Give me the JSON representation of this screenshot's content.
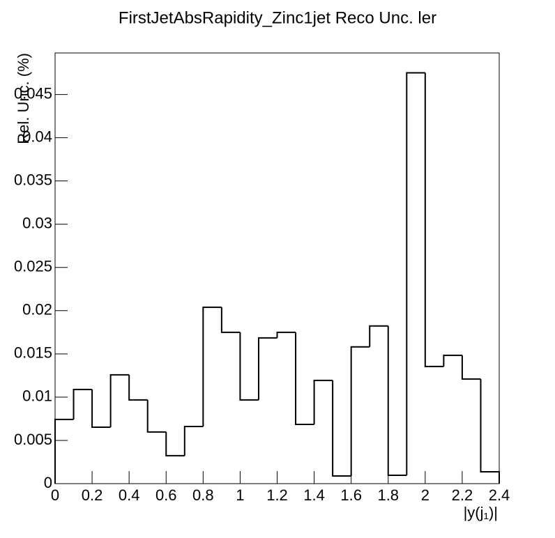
{
  "chart_data": {
    "type": "histogram",
    "title": "FirstJetAbsRapidity_Zinc1jet Reco Unc. ler",
    "x_label": "|y(j₁)|",
    "y_label": "Rel. Unc. (%)",
    "bins": [
      0,
      0.1,
      0.2,
      0.3,
      0.4,
      0.5,
      0.6,
      0.7,
      0.8,
      0.9,
      1,
      1.1,
      1.2,
      1.3,
      1.4,
      1.5,
      1.6,
      1.7,
      1.8,
      1.9,
      2,
      2.1,
      2.2,
      2.3,
      2.4
    ],
    "values": [
      0.00742,
      0.01089,
      0.00653,
      0.01258,
      0.00968,
      0.00597,
      0.00323,
      0.00661,
      0.0204,
      0.0175,
      0.00968,
      0.01685,
      0.0175,
      0.00685,
      0.01194,
      0.00089,
      0.01581,
      0.01823,
      0.00097,
      0.0475,
      0.01355,
      0.01484,
      0.0121,
      0.00137
    ],
    "color": "#000000",
    "xlim": [
      0,
      2.4
    ],
    "ylim": [
      0,
      0.0498
    ],
    "xticks": [
      0,
      0.2,
      0.4,
      0.6,
      0.8,
      1,
      1.2,
      1.4,
      1.6,
      1.8,
      2,
      2.2,
      2.4
    ],
    "yticks": [
      0,
      0.005,
      0.01,
      0.015,
      0.02,
      0.025,
      0.03,
      0.035,
      0.04,
      0.045
    ]
  }
}
